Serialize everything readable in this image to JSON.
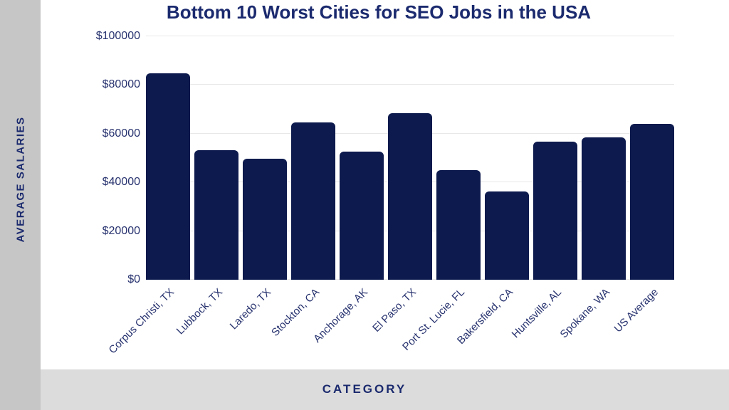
{
  "page": {
    "title": "Bottom 10 Worst Cities for SEO Jobs in the USA"
  },
  "colors": {
    "bar": "#0d1a4d",
    "title_text": "#1b2a6e",
    "tick_text": "#28336f",
    "left_strip": "#c6c6c6",
    "bottom_band": "#dcdcdc",
    "gridline": "#e8e8e8",
    "background": "#ffffff"
  },
  "chart_data": {
    "type": "bar",
    "title": "Bottom 10 Worst Cities for SEO Jobs in the USA",
    "xlabel": "CATEGORY",
    "ylabel": "AVERAGE SALARIES",
    "categories": [
      "Corpus Christi, TX",
      "Lubbock, TX",
      "Laredo, TX",
      "Stockton, CA",
      "Anchorage, AK",
      "El Paso, TX",
      "Port St. Lucie, FL",
      "Bakersfield, CA",
      "Huntsville, AL",
      "Spokane, WA",
      "US Average"
    ],
    "values": [
      84800,
      53100,
      49800,
      64500,
      52500,
      68400,
      44900,
      36300,
      56600,
      58500,
      63900
    ],
    "ylim": [
      0,
      100000
    ],
    "yticks": [
      0,
      20000,
      40000,
      60000,
      80000,
      100000
    ],
    "ytick_labels": [
      "$0",
      "$20000",
      "$40000",
      "$60000",
      "$80000",
      "$100000"
    ],
    "grid": true,
    "legend": false,
    "bar_corner_radius": "rounded-top",
    "x_tick_rotation_deg": 45
  }
}
